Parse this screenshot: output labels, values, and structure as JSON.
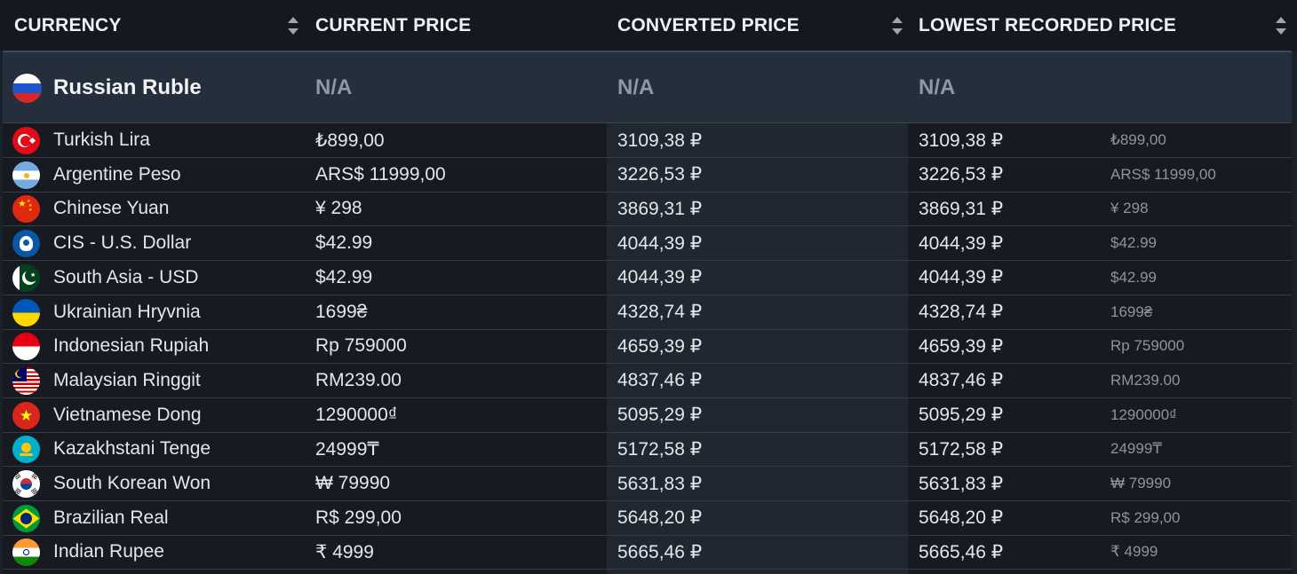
{
  "headers": {
    "currency": "CURRENCY",
    "current_price": "CURRENT PRICE",
    "converted_price": "CONVERTED PRICE",
    "lowest_recorded_price": "LOWEST RECORDED PRICE"
  },
  "featured": {
    "name": "Russian Ruble",
    "current_price": "N/A",
    "converted_price": "N/A",
    "lowest_recorded_price": "N/A",
    "flag_icon": "russia-flag-icon"
  },
  "rows": [
    {
      "name": "Turkish Lira",
      "current_price": "₺899,00",
      "converted_price": "3109,38 ₽",
      "lowest_converted": "3109,38 ₽",
      "lowest_original": "₺899,00",
      "flag_icon": "turkey-flag-icon"
    },
    {
      "name": "Argentine Peso",
      "current_price": "ARS$ 11999,00",
      "converted_price": "3226,53 ₽",
      "lowest_converted": "3226,53 ₽",
      "lowest_original": "ARS$ 11999,00",
      "flag_icon": "argentina-flag-icon"
    },
    {
      "name": "Chinese Yuan",
      "current_price": "¥ 298",
      "converted_price": "3869,31 ₽",
      "lowest_converted": "3869,31 ₽",
      "lowest_original": "¥ 298",
      "flag_icon": "china-flag-icon"
    },
    {
      "name": "CIS - U.S. Dollar",
      "current_price": "$42.99",
      "converted_price": "4044,39 ₽",
      "lowest_converted": "4044,39 ₽",
      "lowest_original": "$42.99",
      "flag_icon": "cis-flag-icon"
    },
    {
      "name": "South Asia - USD",
      "current_price": "$42.99",
      "converted_price": "4044,39 ₽",
      "lowest_converted": "4044,39 ₽",
      "lowest_original": "$42.99",
      "flag_icon": "pakistan-flag-icon"
    },
    {
      "name": "Ukrainian Hryvnia",
      "current_price": "1699₴",
      "converted_price": "4328,74 ₽",
      "lowest_converted": "4328,74 ₽",
      "lowest_original": "1699₴",
      "flag_icon": "ukraine-flag-icon"
    },
    {
      "name": "Indonesian Rupiah",
      "current_price": "Rp 759000",
      "converted_price": "4659,39 ₽",
      "lowest_converted": "4659,39 ₽",
      "lowest_original": "Rp 759000",
      "flag_icon": "indonesia-flag-icon"
    },
    {
      "name": "Malaysian Ringgit",
      "current_price": "RM239.00",
      "converted_price": "4837,46 ₽",
      "lowest_converted": "4837,46 ₽",
      "lowest_original": "RM239.00",
      "flag_icon": "malaysia-flag-icon"
    },
    {
      "name": "Vietnamese Dong",
      "current_price": "1290000₫",
      "converted_price": "5095,29 ₽",
      "lowest_converted": "5095,29 ₽",
      "lowest_original": "1290000₫",
      "flag_icon": "vietnam-flag-icon"
    },
    {
      "name": "Kazakhstani Tenge",
      "current_price": "24999₸",
      "converted_price": "5172,58 ₽",
      "lowest_converted": "5172,58 ₽",
      "lowest_original": "24999₸",
      "flag_icon": "kazakhstan-flag-icon"
    },
    {
      "name": "South Korean Won",
      "current_price": "₩ 79990",
      "converted_price": "5631,83 ₽",
      "lowest_converted": "5631,83 ₽",
      "lowest_original": "₩ 79990",
      "flag_icon": "south-korea-flag-icon"
    },
    {
      "name": "Brazilian Real",
      "current_price": "R$ 299,00",
      "converted_price": "5648,20 ₽",
      "lowest_converted": "5648,20 ₽",
      "lowest_original": "R$ 299,00",
      "flag_icon": "brazil-flag-icon"
    },
    {
      "name": "Indian Rupee",
      "current_price": "₹ 4999",
      "converted_price": "5665,46 ₽",
      "lowest_converted": "5665,46 ₽",
      "lowest_original": "₹ 4999",
      "flag_icon": "india-flag-icon"
    }
  ]
}
